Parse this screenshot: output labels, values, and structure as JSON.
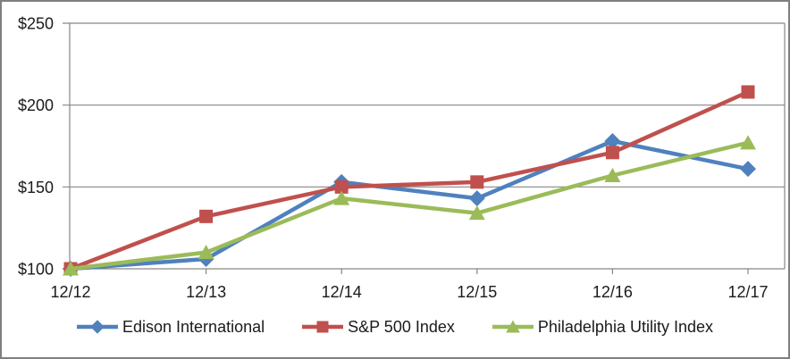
{
  "window": {
    "background": "#ffffff",
    "border_color": "#7f7f7f"
  },
  "chart_data": {
    "type": "line",
    "title": "",
    "categories": [
      "12/12",
      "12/13",
      "12/14",
      "12/15",
      "12/16",
      "12/17"
    ],
    "series": [
      {
        "name": "Edison International",
        "marker": "diamond",
        "color": "#4F81BD",
        "values": [
          100,
          106,
          153,
          143,
          178,
          161
        ]
      },
      {
        "name": "S&P 500 Index",
        "marker": "square",
        "color": "#C0504D",
        "values": [
          100,
          132,
          150,
          153,
          171,
          208
        ]
      },
      {
        "name": "Philadelphia Utility Index",
        "marker": "triangle",
        "color": "#9BBB59",
        "values": [
          100,
          110,
          143,
          134,
          157,
          177
        ]
      }
    ],
    "y_axis": {
      "min": 100,
      "max": 250,
      "tick_values": [
        100,
        150,
        200,
        250
      ],
      "tick_labels": [
        "$100",
        "$150",
        "$200",
        "$250"
      ]
    },
    "x_axis": {
      "tick_labels": [
        "12/12",
        "12/13",
        "12/14",
        "12/15",
        "12/16",
        "12/17"
      ]
    },
    "grid": true,
    "legend_position": "bottom",
    "colors": {
      "gridline": "#878787",
      "axis": "#878787",
      "text": "#1a1a1a"
    }
  }
}
